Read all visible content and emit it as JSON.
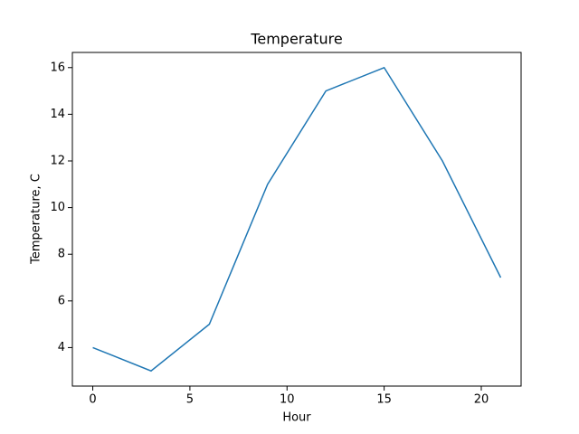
{
  "chart_data": {
    "type": "line",
    "title": "Temperature",
    "x_label": "Hour",
    "y_label": "Temperature, C",
    "x": [
      0,
      3,
      6,
      9,
      12,
      15,
      18,
      21
    ],
    "series": [
      {
        "color": "#1f77b4",
        "values": [
          4,
          3,
          5,
          11,
          15,
          16,
          12,
          7
        ]
      }
    ],
    "xlim": [
      -1.05,
      22.05
    ],
    "xticks": [
      0,
      5,
      10,
      15,
      20
    ],
    "ylim": [
      2.35,
      16.65
    ],
    "yticks": [
      4,
      6,
      8,
      10,
      12,
      14,
      16
    ],
    "grid": false
  }
}
